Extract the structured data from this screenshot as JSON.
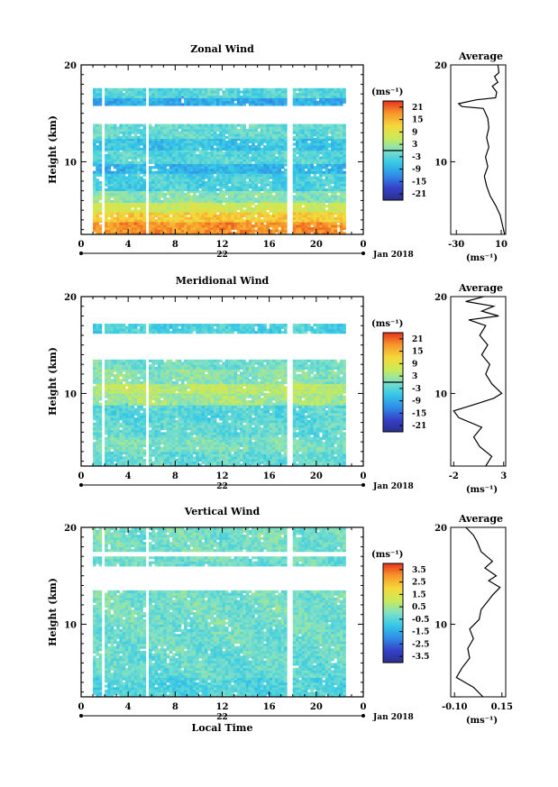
{
  "chart_data": [
    {
      "type": "heatmap",
      "title": "Zonal Wind",
      "xlabel": "",
      "ylabel": "Height (km)",
      "xlim": [
        0,
        24
      ],
      "ylim": [
        2.5,
        20
      ],
      "xticks": [
        "0",
        "4",
        "8",
        "12",
        "16",
        "20",
        "0"
      ],
      "yticks": [
        "10",
        "20"
      ],
      "date_mark": "22",
      "date_label": "Jan 2018",
      "unit": "(ms⁻¹)",
      "colorbar": {
        "ticks": [
          "21",
          "15",
          "9",
          "3",
          "-3",
          "-9",
          "-15",
          "-21"
        ],
        "range": [
          -24,
          24
        ],
        "zero_line": true
      },
      "data_gaps_hours": [
        [
          0,
          0.9
        ],
        [
          1.6,
          2.0
        ],
        [
          5.5,
          5.7
        ],
        [
          17.5,
          17.9
        ],
        [
          22.3,
          24
        ]
      ],
      "layers": [
        {
          "z0": 2.5,
          "z1": 3.8,
          "value": 18
        },
        {
          "z0": 3.8,
          "z1": 4.8,
          "value": 13
        },
        {
          "z0": 4.8,
          "z1": 5.8,
          "value": 7
        },
        {
          "z0": 5.8,
          "z1": 7.0,
          "value": 1
        },
        {
          "z0": 7.0,
          "z1": 8.8,
          "value": -4
        },
        {
          "z0": 8.8,
          "z1": 9.8,
          "value": -8
        },
        {
          "z0": 9.8,
          "z1": 11.2,
          "value": -3
        },
        {
          "z0": 11.2,
          "z1": 12.4,
          "value": -6
        },
        {
          "z0": 12.4,
          "z1": 13.8,
          "value": -2
        },
        {
          "z0": 15.8,
          "z1": 16.6,
          "value": -9
        },
        {
          "z0": 16.6,
          "z1": 17.4,
          "value": -3
        }
      ],
      "profile": {
        "title": "Average",
        "xlim": [
          -35,
          14
        ],
        "xticks": [
          "-30",
          "10"
        ],
        "xlabel": "(ms⁻¹)",
        "points": [
          [
            13,
            2.5
          ],
          [
            11,
            3.5
          ],
          [
            9,
            4.5
          ],
          [
            5,
            5.5
          ],
          [
            0,
            6.5
          ],
          [
            -3,
            7.5
          ],
          [
            -5,
            8.5
          ],
          [
            -2,
            9.5
          ],
          [
            -4,
            10.5
          ],
          [
            -1,
            11.5
          ],
          [
            -3,
            12.5
          ],
          [
            -1,
            13.5
          ],
          [
            -2,
            14.5
          ],
          [
            -6,
            15.5
          ],
          [
            -25,
            15.7
          ],
          [
            -28,
            16.0
          ],
          [
            -12,
            16.4
          ],
          [
            5,
            16.6
          ],
          [
            6,
            17.2
          ],
          [
            2,
            17.8
          ],
          [
            7,
            18.2
          ],
          [
            4,
            18.8
          ],
          [
            8,
            19.2
          ],
          [
            7,
            20
          ]
        ]
      }
    },
    {
      "type": "heatmap",
      "title": "Meridional Wind",
      "xlabel": "",
      "ylabel": "Height (km)",
      "xlim": [
        0,
        24
      ],
      "ylim": [
        2.5,
        20
      ],
      "xticks": [
        "0",
        "4",
        "8",
        "12",
        "16",
        "20",
        "0"
      ],
      "yticks": [
        "10",
        "20"
      ],
      "date_mark": "22",
      "date_label": "Jan 2018",
      "unit": "(ms⁻¹)",
      "colorbar": {
        "ticks": [
          "21",
          "15",
          "9",
          "3",
          "-3",
          "-9",
          "-15",
          "-21"
        ],
        "range": [
          -24,
          24
        ],
        "zero_line": true
      },
      "data_gaps_hours": [
        [
          0,
          0.9
        ],
        [
          1.6,
          2.0
        ],
        [
          5.5,
          5.7
        ],
        [
          17.5,
          17.9
        ],
        [
          22.3,
          24
        ]
      ],
      "layers": [
        {
          "z0": 2.5,
          "z1": 4.0,
          "value": -2
        },
        {
          "z0": 4.0,
          "z1": 5.5,
          "value": 0
        },
        {
          "z0": 5.5,
          "z1": 7.0,
          "value": -2
        },
        {
          "z0": 7.0,
          "z1": 8.8,
          "value": -3
        },
        {
          "z0": 8.8,
          "z1": 10.0,
          "value": 3
        },
        {
          "z0": 10.0,
          "z1": 11.0,
          "value": 5
        },
        {
          "z0": 11.0,
          "z1": 12.5,
          "value": 1
        },
        {
          "z0": 12.5,
          "z1": 13.5,
          "value": -1
        },
        {
          "z0": 16.2,
          "z1": 17.2,
          "value": -4
        }
      ],
      "profile": {
        "title": "Average",
        "xlim": [
          -2.3,
          3.2
        ],
        "xticks": [
          "-2",
          "3"
        ],
        "xlabel": "(ms⁻¹)",
        "points": [
          [
            1.2,
            2.5
          ],
          [
            1.8,
            3.5
          ],
          [
            0.6,
            4.5
          ],
          [
            0.0,
            5.5
          ],
          [
            0.8,
            6.5
          ],
          [
            -1.5,
            7.5
          ],
          [
            -2,
            8.2
          ],
          [
            0.5,
            9.0
          ],
          [
            2.0,
            9.5
          ],
          [
            2.8,
            10.0
          ],
          [
            1.8,
            11.0
          ],
          [
            1.2,
            12.0
          ],
          [
            1.6,
            13.0
          ],
          [
            0.8,
            14.0
          ],
          [
            1.4,
            15.0
          ],
          [
            0.6,
            16.0
          ],
          [
            1.2,
            17.0
          ],
          [
            -0.5,
            17.6
          ],
          [
            2.5,
            18.0
          ],
          [
            0.8,
            18.5
          ],
          [
            2.0,
            19.0
          ],
          [
            -0.8,
            19.5
          ],
          [
            1.0,
            20
          ]
        ]
      }
    },
    {
      "type": "heatmap",
      "title": "Vertical Wind",
      "xlabel": "Local Time",
      "ylabel": "Height (km)",
      "xlim": [
        0,
        24
      ],
      "ylim": [
        2.5,
        20
      ],
      "xticks": [
        "0",
        "4",
        "8",
        "12",
        "16",
        "20",
        "0"
      ],
      "yticks": [
        "10",
        "20"
      ],
      "date_mark": "22",
      "date_label": "Jan 2018",
      "unit": "(ms⁻¹)",
      "colorbar": {
        "ticks": [
          "3.5",
          "2.5",
          "1.5",
          "0.5",
          "-0.5",
          "-1.5",
          "-2.5",
          "-3.5"
        ],
        "range": [
          -4,
          4
        ],
        "zero_line": false
      },
      "data_gaps_hours": [
        [
          0,
          0.9
        ],
        [
          1.6,
          2.0
        ],
        [
          5.5,
          5.7
        ],
        [
          17.5,
          17.9
        ],
        [
          22.3,
          24
        ]
      ],
      "layers": [
        {
          "z0": 2.5,
          "z1": 4.5,
          "value": -0.6
        },
        {
          "z0": 4.5,
          "z1": 7.0,
          "value": -0.3
        },
        {
          "z0": 7.0,
          "z1": 10.0,
          "value": -0.2
        },
        {
          "z0": 10.0,
          "z1": 13.5,
          "value": -0.1
        },
        {
          "z0": 16.0,
          "z1": 17.0,
          "value": -0.2
        },
        {
          "z0": 17.5,
          "z1": 19.8,
          "value": -0.1
        }
      ],
      "profile": {
        "title": "Average",
        "xlim": [
          -0.12,
          0.17
        ],
        "xticks": [
          "-0.10",
          "0.15"
        ],
        "xlabel": "(ms⁻¹)",
        "points": [
          [
            0.05,
            2.5
          ],
          [
            0.0,
            3.5
          ],
          [
            -0.09,
            4.5
          ],
          [
            -0.06,
            5.5
          ],
          [
            -0.02,
            6.5
          ],
          [
            -0.03,
            7.5
          ],
          [
            0.0,
            8.5
          ],
          [
            -0.02,
            9.5
          ],
          [
            0.03,
            10.5
          ],
          [
            0.04,
            11.5
          ],
          [
            0.08,
            12.5
          ],
          [
            0.1,
            13.0
          ],
          [
            0.14,
            13.8
          ],
          [
            0.08,
            14.5
          ],
          [
            0.12,
            15.0
          ],
          [
            0.06,
            15.8
          ],
          [
            0.1,
            16.5
          ],
          [
            0.04,
            17.5
          ],
          [
            0.02,
            18.5
          ],
          [
            0.0,
            19.2
          ],
          [
            -0.04,
            20
          ]
        ]
      }
    }
  ]
}
